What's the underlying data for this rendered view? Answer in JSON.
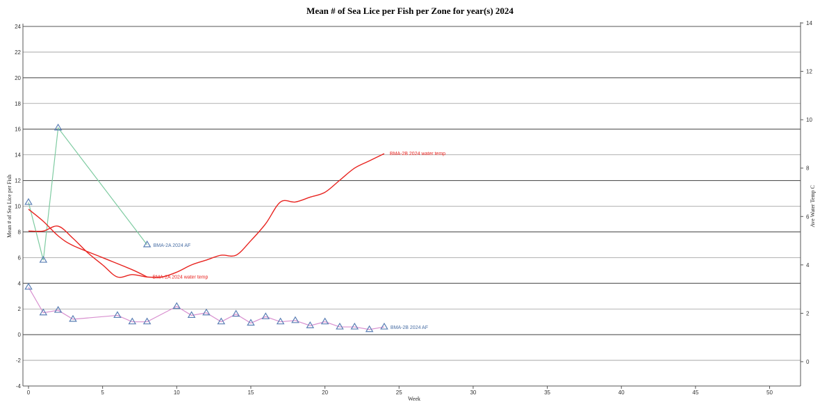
{
  "chart_data": {
    "type": "line",
    "title": "Mean # of Sea Lice per Fish per Zone for year(s) 2024",
    "xlabel": "Week",
    "ylabel": "Mean # of Sea Lice per Fish",
    "y2label": "Ave Water Temp C",
    "xlim": [
      0,
      52
    ],
    "ylim": [
      -4,
      24
    ],
    "y2lim": [
      0,
      14
    ],
    "xticks": [
      0,
      5,
      10,
      15,
      20,
      25,
      30,
      35,
      40,
      45,
      50
    ],
    "yticks": [
      -4,
      -2,
      0,
      2,
      4,
      6,
      8,
      10,
      12,
      14,
      16,
      18,
      20,
      22,
      24
    ],
    "y2ticks": [
      0,
      2,
      4,
      6,
      8,
      10,
      12,
      14
    ],
    "grid": true,
    "series": [
      {
        "name": "BMA-2A 2024 AF",
        "axis": "left",
        "color": "#7ecba1",
        "marker": "triangle",
        "x": [
          0,
          1,
          2,
          8
        ],
        "y": [
          10.3,
          5.8,
          16.1,
          7.0
        ]
      },
      {
        "name": "BMA-2B 2024 AF",
        "axis": "left",
        "color": "#d88fcf",
        "marker": "triangle",
        "x": [
          0,
          1,
          2,
          3,
          6,
          7,
          8,
          10,
          11,
          12,
          13,
          14,
          15,
          16,
          17,
          18,
          19,
          20,
          21,
          22,
          23,
          24
        ],
        "y": [
          3.7,
          1.7,
          1.9,
          1.2,
          1.5,
          1.0,
          1.0,
          2.2,
          1.5,
          1.7,
          1.0,
          1.6,
          0.9,
          1.4,
          1.0,
          1.1,
          0.7,
          1.0,
          0.6,
          0.6,
          0.4,
          0.6
        ]
      },
      {
        "name": "BMA-2A 2024 water temp",
        "axis": "right",
        "color": "#e8231f",
        "marker": "none",
        "x": [
          0,
          1,
          2,
          3,
          5,
          7,
          8
        ],
        "y": [
          6.3,
          5.8,
          5.2,
          4.8,
          4.3,
          3.8,
          3.5
        ]
      },
      {
        "name": "BMA-2B 2024 water temp",
        "axis": "right",
        "color": "#e8231f",
        "marker": "none",
        "x": [
          0,
          1,
          2,
          3,
          4,
          5,
          6,
          7,
          8,
          9,
          10,
          11,
          12,
          13,
          14,
          15,
          16,
          17,
          18,
          19,
          20,
          21,
          22,
          23,
          24
        ],
        "y": [
          5.4,
          5.4,
          5.6,
          5.1,
          4.5,
          4.0,
          3.5,
          3.6,
          3.5,
          3.5,
          3.7,
          4.0,
          4.2,
          4.4,
          4.4,
          5.0,
          5.7,
          6.6,
          6.6,
          6.8,
          7.0,
          7.5,
          8.0,
          8.3,
          8.6
        ]
      }
    ]
  }
}
